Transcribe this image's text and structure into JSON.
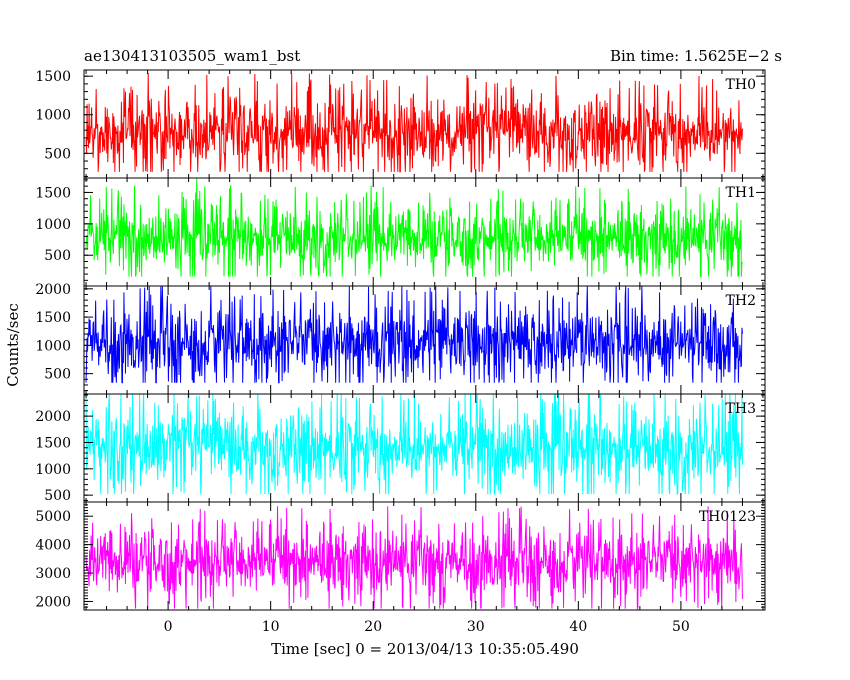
{
  "chart_data": {
    "type": "line",
    "title_left": "ae130413103505_wam1_bst",
    "title_right": "Bin time: 1.5625E−2 s",
    "xlabel": "Time [sec] 0 = 2013/04/13 10:35:05.490",
    "ylabel": "Counts/sec",
    "xlim": [
      -8.2,
      58.2
    ],
    "x_ticks": [
      0,
      10,
      20,
      30,
      40,
      50
    ],
    "x_tick_labels": [
      "0",
      "10",
      "20",
      "30",
      "40",
      "50"
    ],
    "data_x_range": [
      -8,
      56
    ],
    "bin_time": 0.015625,
    "grid": false,
    "panels": [
      {
        "label": "TH0",
        "color": "#ff0000",
        "ylim": [
          180,
          1580
        ],
        "y_ticks": [
          500,
          1000,
          1500
        ],
        "y_tick_labels": [
          "500",
          "1000",
          "1500"
        ],
        "mean": 760,
        "spread": 310,
        "min": 260,
        "max": 1570
      },
      {
        "label": "TH1",
        "color": "#00ff00",
        "ylim": [
          10,
          1730
        ],
        "y_ticks": [
          500,
          1000,
          1500
        ],
        "y_tick_labels": [
          "500",
          "1000",
          "1500"
        ],
        "mean": 780,
        "spread": 330,
        "min": 160,
        "max": 1720
      },
      {
        "label": "TH2",
        "color": "#0000ff",
        "ylim": [
          140,
          2050
        ],
        "y_ticks": [
          500,
          1000,
          1500,
          2000
        ],
        "y_tick_labels": [
          "500",
          "1000",
          "1500",
          "2000"
        ],
        "mean": 1060,
        "spread": 430,
        "min": 340,
        "max": 2040
      },
      {
        "label": "TH3",
        "color": "#00ffff",
        "ylim": [
          370,
          2420
        ],
        "y_ticks": [
          500,
          1000,
          1500,
          2000
        ],
        "y_tick_labels": [
          "500",
          "1000",
          "1500",
          "2000"
        ],
        "mean": 1380,
        "spread": 480,
        "min": 520,
        "max": 2410
      },
      {
        "label": "TH0123",
        "color": "#ff00ff",
        "ylim": [
          1700,
          5500
        ],
        "y_ticks": [
          2000,
          3000,
          4000,
          5000
        ],
        "y_tick_labels": [
          "2000",
          "3000",
          "4000",
          "5000"
        ],
        "mean": 3420,
        "spread": 780,
        "min": 1750,
        "max": 5450
      }
    ]
  }
}
